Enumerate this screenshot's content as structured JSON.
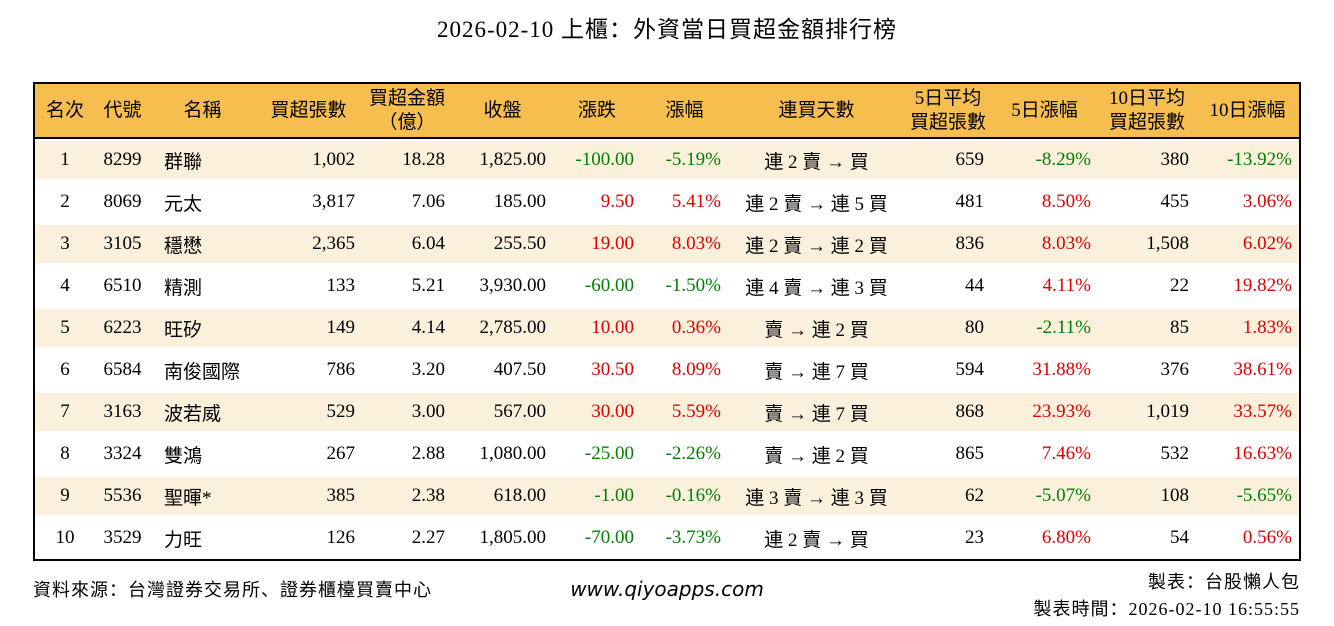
{
  "title": "2026-02-10 上櫃：外資當日買超金額排行榜",
  "colors": {
    "up": "#dd0000",
    "down": "#008000",
    "header_bg": "#f6be4e",
    "row_stripe": "#faf0dc",
    "border": "#000000"
  },
  "columns": [
    {
      "label": "名次"
    },
    {
      "label": "代號"
    },
    {
      "label": "名稱"
    },
    {
      "label": "買超張數"
    },
    {
      "label": "買超金額\n（億）"
    },
    {
      "label": "收盤"
    },
    {
      "label": "漲跌"
    },
    {
      "label": "漲幅"
    },
    {
      "label": "連買天數"
    },
    {
      "label": "5日平均\n買超張數"
    },
    {
      "label": "5日漲幅"
    },
    {
      "label": "10日平均\n買超張數"
    },
    {
      "label": "10日漲幅"
    }
  ],
  "chart_data": {
    "type": "table",
    "title": "2026-02-10 上櫃：外資當日買超金額排行榜"
  },
  "rows": [
    {
      "rank": "1",
      "code": "8299",
      "name": "群聯",
      "volume": "1,002",
      "amount": "18.28",
      "close": "1,825.00",
      "change": "-100.00",
      "change_dir": "down",
      "change_pct": "-5.19%",
      "change_pct_dir": "down",
      "streak": "連 2 賣 → 買",
      "avg5": "659",
      "pct5": "-8.29%",
      "pct5_dir": "down",
      "avg10": "380",
      "pct10": "-13.92%",
      "pct10_dir": "down"
    },
    {
      "rank": "2",
      "code": "8069",
      "name": "元太",
      "volume": "3,817",
      "amount": "7.06",
      "close": "185.00",
      "change": "9.50",
      "change_dir": "up",
      "change_pct": "5.41%",
      "change_pct_dir": "up",
      "streak": "連 2 賣 → 連 5 買",
      "avg5": "481",
      "pct5": "8.50%",
      "pct5_dir": "up",
      "avg10": "455",
      "pct10": "3.06%",
      "pct10_dir": "up"
    },
    {
      "rank": "3",
      "code": "3105",
      "name": "穩懋",
      "volume": "2,365",
      "amount": "6.04",
      "close": "255.50",
      "change": "19.00",
      "change_dir": "up",
      "change_pct": "8.03%",
      "change_pct_dir": "up",
      "streak": "連 2 賣 → 連 2 買",
      "avg5": "836",
      "pct5": "8.03%",
      "pct5_dir": "up",
      "avg10": "1,508",
      "pct10": "6.02%",
      "pct10_dir": "up"
    },
    {
      "rank": "4",
      "code": "6510",
      "name": "精測",
      "volume": "133",
      "amount": "5.21",
      "close": "3,930.00",
      "change": "-60.00",
      "change_dir": "down",
      "change_pct": "-1.50%",
      "change_pct_dir": "down",
      "streak": "連 4 賣 → 連 3 買",
      "avg5": "44",
      "pct5": "4.11%",
      "pct5_dir": "up",
      "avg10": "22",
      "pct10": "19.82%",
      "pct10_dir": "up"
    },
    {
      "rank": "5",
      "code": "6223",
      "name": "旺矽",
      "volume": "149",
      "amount": "4.14",
      "close": "2,785.00",
      "change": "10.00",
      "change_dir": "up",
      "change_pct": "0.36%",
      "change_pct_dir": "up",
      "streak": "賣 → 連 2 買",
      "avg5": "80",
      "pct5": "-2.11%",
      "pct5_dir": "down",
      "avg10": "85",
      "pct10": "1.83%",
      "pct10_dir": "up"
    },
    {
      "rank": "6",
      "code": "6584",
      "name": "南俊國際",
      "volume": "786",
      "amount": "3.20",
      "close": "407.50",
      "change": "30.50",
      "change_dir": "up",
      "change_pct": "8.09%",
      "change_pct_dir": "up",
      "streak": "賣 → 連 7 買",
      "avg5": "594",
      "pct5": "31.88%",
      "pct5_dir": "up",
      "avg10": "376",
      "pct10": "38.61%",
      "pct10_dir": "up"
    },
    {
      "rank": "7",
      "code": "3163",
      "name": "波若威",
      "volume": "529",
      "amount": "3.00",
      "close": "567.00",
      "change": "30.00",
      "change_dir": "up",
      "change_pct": "5.59%",
      "change_pct_dir": "up",
      "streak": "賣 → 連 7 買",
      "avg5": "868",
      "pct5": "23.93%",
      "pct5_dir": "up",
      "avg10": "1,019",
      "pct10": "33.57%",
      "pct10_dir": "up"
    },
    {
      "rank": "8",
      "code": "3324",
      "name": "雙鴻",
      "volume": "267",
      "amount": "2.88",
      "close": "1,080.00",
      "change": "-25.00",
      "change_dir": "down",
      "change_pct": "-2.26%",
      "change_pct_dir": "down",
      "streak": "賣 → 連 2 買",
      "avg5": "865",
      "pct5": "7.46%",
      "pct5_dir": "up",
      "avg10": "532",
      "pct10": "16.63%",
      "pct10_dir": "up"
    },
    {
      "rank": "9",
      "code": "5536",
      "name": "聖暉*",
      "volume": "385",
      "amount": "2.38",
      "close": "618.00",
      "change": "-1.00",
      "change_dir": "down",
      "change_pct": "-0.16%",
      "change_pct_dir": "down",
      "streak": "連 3 賣 → 連 3 買",
      "avg5": "62",
      "pct5": "-5.07%",
      "pct5_dir": "down",
      "avg10": "108",
      "pct10": "-5.65%",
      "pct10_dir": "down"
    },
    {
      "rank": "10",
      "code": "3529",
      "name": "力旺",
      "volume": "126",
      "amount": "2.27",
      "close": "1,805.00",
      "change": "-70.00",
      "change_dir": "down",
      "change_pct": "-3.73%",
      "change_pct_dir": "down",
      "streak": "連 2 賣 → 買",
      "avg5": "23",
      "pct5": "6.80%",
      "pct5_dir": "up",
      "avg10": "54",
      "pct10": "0.56%",
      "pct10_dir": "up"
    }
  ],
  "footer": {
    "source": "資料來源：台灣證券交易所、證券櫃檯買賣中心",
    "site": "www.qiyoapps.com",
    "maker": "製表：台股懶人包",
    "time": "製表時間：2026-02-10 16:55:55"
  }
}
